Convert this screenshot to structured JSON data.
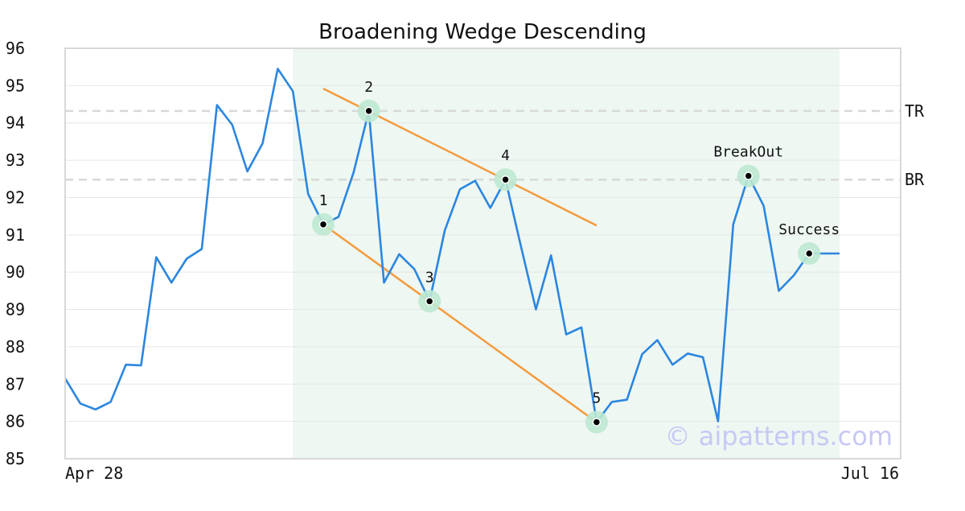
{
  "chart_data": {
    "type": "line",
    "title": "Broadening Wedge Descending",
    "xlabel": "",
    "ylabel": "",
    "x_tick_labels": [
      "Apr 28",
      "Jul 16"
    ],
    "ylim": [
      85,
      96
    ],
    "y_ticks": [
      85,
      86,
      87,
      88,
      89,
      90,
      91,
      92,
      93,
      94,
      95,
      96
    ],
    "grid": true,
    "series": [
      {
        "values": [
          87.15,
          86.48,
          86.32,
          86.52,
          87.52,
          87.5,
          90.4,
          89.72,
          90.36,
          90.62,
          94.48,
          93.95,
          92.7,
          93.45,
          95.45,
          94.85,
          92.1,
          91.28,
          91.48,
          92.68,
          94.32,
          89.72,
          90.48,
          90.08,
          89.22,
          91.12,
          92.22,
          92.45,
          91.72,
          92.48,
          90.72,
          89.0,
          90.45,
          88.33,
          88.52,
          85.98,
          86.52,
          86.58,
          87.8,
          88.18,
          87.52,
          87.82,
          87.72,
          86.0,
          91.28,
          92.58,
          91.78,
          89.5,
          89.92,
          90.5,
          90.5,
          90.5
        ]
      }
    ],
    "pattern_region": {
      "start_index": 15,
      "end_index": 51
    },
    "points": [
      {
        "label": "1",
        "index": 17,
        "value": 91.28
      },
      {
        "label": "2",
        "index": 20,
        "value": 94.32
      },
      {
        "label": "3",
        "index": 24,
        "value": 89.22
      },
      {
        "label": "4",
        "index": 29,
        "value": 92.48
      },
      {
        "label": "5",
        "index": 35,
        "value": 85.98
      },
      {
        "label": "BreakOut",
        "index": 45,
        "value": 92.58
      },
      {
        "label": "Success",
        "index": 49,
        "value": 90.5
      }
    ],
    "trendlines": [
      {
        "name": "upper",
        "from": {
          "index": 17,
          "value": 94.92
        },
        "to": {
          "index": 35,
          "value": 91.25
        }
      },
      {
        "name": "lower",
        "from": {
          "index": 17,
          "value": 91.28
        },
        "to": {
          "index": 35,
          "value": 85.98
        }
      }
    ],
    "levels": [
      {
        "label": "TR",
        "value": 94.32
      },
      {
        "label": "BR",
        "value": 92.48
      }
    ],
    "watermark": "© aipatterns.com",
    "colors": {
      "line": "#2b86e0",
      "trend": "#f59a3c",
      "level": "#d8d8d8",
      "region": "#eef7f2",
      "marker_halo": "#bde8d2",
      "marker": "#000000",
      "grid": "#e6e6e6",
      "frame": "#d8d8d8"
    }
  }
}
